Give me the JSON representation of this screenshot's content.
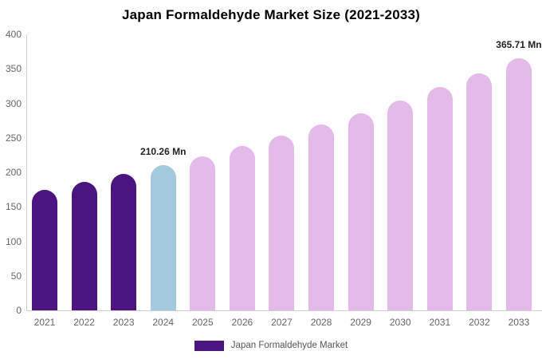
{
  "chart_data": {
    "type": "bar",
    "title": "Japan Formaldehyde Market Size (2021-2033)",
    "xlabel": "",
    "ylabel": "",
    "unit": "Mn",
    "categories": [
      "2021",
      "2022",
      "2023",
      "2024",
      "2025",
      "2026",
      "2027",
      "2028",
      "2029",
      "2030",
      "2031",
      "2032",
      "2033"
    ],
    "values": [
      174.84,
      185.92,
      197.72,
      210.26,
      223.6,
      237.78,
      252.86,
      268.9,
      285.96,
      304.1,
      323.39,
      343.9,
      365.71
    ],
    "ylim": [
      0,
      400
    ],
    "yticks": [
      0,
      50,
      100,
      150,
      200,
      250,
      300,
      350,
      400
    ],
    "grid": false,
    "legend": {
      "label": "Japan Formaldehyde Market",
      "position": "bottom"
    },
    "data_labels": [
      {
        "category": "2024",
        "text": "210.26 Mn"
      },
      {
        "category": "2033",
        "text": "365.71 Mn"
      }
    ],
    "bar_roles": [
      "historical",
      "historical",
      "historical",
      "highlight",
      "forecast",
      "forecast",
      "forecast",
      "forecast",
      "forecast",
      "forecast",
      "forecast",
      "forecast",
      "forecast"
    ],
    "colors": {
      "historical": "#4A1580",
      "highlight": "#A2C9DD",
      "forecast": "#E4BBE8",
      "legend_swatch": "#4A1580",
      "axis_line": "#cfcfcf",
      "tick_text": "#666666",
      "data_label_text": "#222222",
      "title_text": "#000000",
      "background": "#ffffff"
    }
  }
}
